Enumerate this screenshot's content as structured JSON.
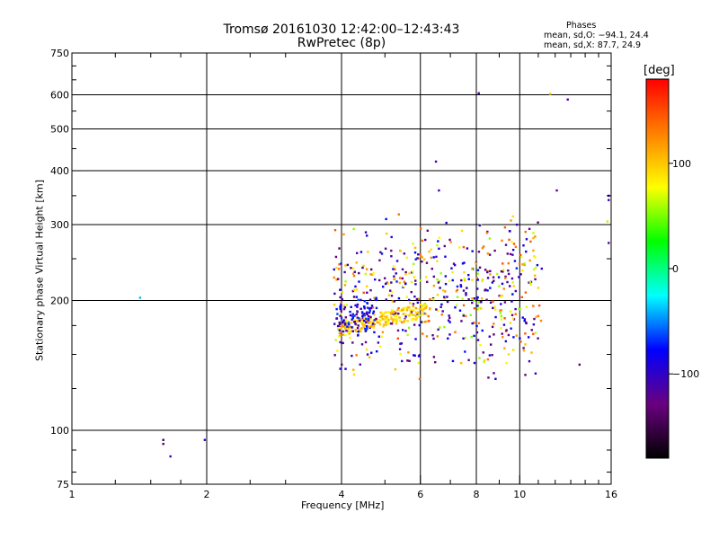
{
  "header": {
    "title_line1": "Tromsø 20161030 12:42:00–12:43:43",
    "title_line2": "RwPretec (8p)",
    "phases_heading": "Phases",
    "phases_o": "mean, sd,O: −94.1, 24.4",
    "phases_x": "mean, sd,X:  87.7, 24.9"
  },
  "colorbar": {
    "unit": "[deg]",
    "ticks": [
      "100",
      "0",
      "−100"
    ],
    "range": [
      -180,
      180
    ]
  },
  "chart_data": {
    "type": "scatter",
    "title": "Tromsø 20161030 12:42:00–12:43:43",
    "subtitle": "RwPretec (8p)",
    "xlabel": "Frequency [MHz]",
    "ylabel": "Stationary phase Virtual Height [km]",
    "xscale": "log",
    "yscale": "log",
    "xlim": [
      1,
      16
    ],
    "ylim": [
      75,
      750
    ],
    "xticks": [
      1,
      2,
      4,
      6,
      8,
      10,
      16
    ],
    "xticklabels": [
      "1",
      "2",
      "4",
      "6",
      "8",
      "10",
      "16"
    ],
    "yticks": [
      75,
      100,
      200,
      300,
      400,
      500,
      600,
      750
    ],
    "yticklabels": [
      "75",
      "100",
      "200",
      "300",
      "400",
      "500",
      "600",
      "750"
    ],
    "grid": true,
    "color_scale": {
      "label": "[deg]",
      "range": [
        -180,
        180
      ],
      "stops": [
        "#000000",
        "#6a0080",
        "#0000ff",
        "#00ffff",
        "#00ff00",
        "#ffff00",
        "#ff8000",
        "#ff0000"
      ]
    },
    "isolated_points": [
      {
        "x": 1.42,
        "y": 203,
        "phase": -40
      },
      {
        "x": 1.6,
        "y": 95,
        "phase": -150
      },
      {
        "x": 1.6,
        "y": 93,
        "phase": -140
      },
      {
        "x": 1.66,
        "y": 87,
        "phase": -110
      },
      {
        "x": 1.98,
        "y": 95,
        "phase": -100
      },
      {
        "x": 8.1,
        "y": 605,
        "phase": -110
      },
      {
        "x": 11.7,
        "y": 603,
        "phase": 100
      },
      {
        "x": 12.8,
        "y": 585,
        "phase": -110
      },
      {
        "x": 12.1,
        "y": 360,
        "phase": -120
      },
      {
        "x": 15.8,
        "y": 350,
        "phase": -110
      },
      {
        "x": 15.8,
        "y": 342,
        "phase": -100
      },
      {
        "x": 15.7,
        "y": 305,
        "phase": 60
      },
      {
        "x": 15.8,
        "y": 272,
        "phase": -110
      },
      {
        "x": 13.6,
        "y": 142,
        "phase": -140
      },
      {
        "x": 6.5,
        "y": 420,
        "phase": -110
      },
      {
        "x": 6.6,
        "y": 360,
        "phase": -110
      }
    ],
    "clusters": [
      {
        "name": "main",
        "xrange": [
          3.85,
          11.2
        ],
        "yrange": [
          128,
          320
        ],
        "count": 600,
        "seed": 7
      },
      {
        "name": "band",
        "xrange": [
          3.95,
          6.2
        ],
        "yrange": [
          168,
          198
        ],
        "count": 190,
        "seed": 11
      },
      {
        "name": "blue-left",
        "xrange": [
          3.9,
          4.8
        ],
        "yrange": [
          165,
          205
        ],
        "count": 90,
        "seed": 19
      }
    ]
  }
}
